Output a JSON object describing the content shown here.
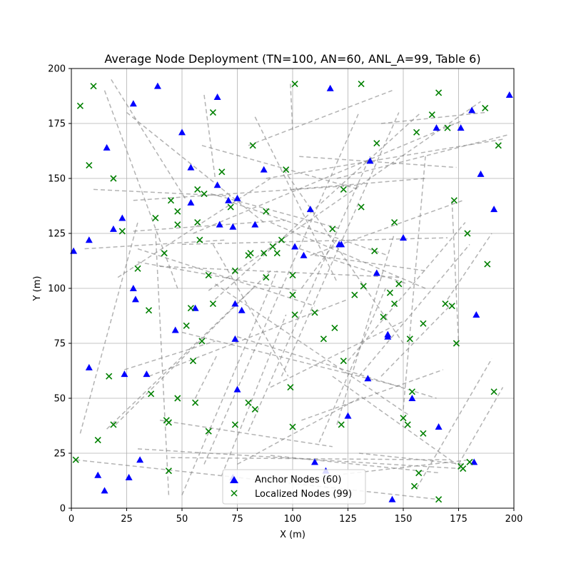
{
  "chart_data": {
    "type": "scatter",
    "title": "Average Node Deployment (TN=100, AN=60, ANL_A=99, Table 6)",
    "xlabel": "X (m)",
    "ylabel": "Y (m)",
    "xlim": [
      0,
      200
    ],
    "ylim": [
      0,
      200
    ],
    "xticks": [
      0,
      25,
      50,
      75,
      100,
      125,
      150,
      175,
      200
    ],
    "yticks": [
      0,
      25,
      50,
      75,
      100,
      125,
      150,
      175,
      200
    ],
    "grid": true,
    "legend_position": "lower-center",
    "colors": {
      "anchor": "#0000ff",
      "localized": "#008000",
      "link": "#808080"
    },
    "series": [
      {
        "name": "Anchor Nodes (60)",
        "marker": "triangle",
        "points": [
          [
            1,
            117
          ],
          [
            8,
            122
          ],
          [
            8,
            64
          ],
          [
            12,
            15
          ],
          [
            15,
            8
          ],
          [
            16,
            164
          ],
          [
            19,
            127
          ],
          [
            23,
            132
          ],
          [
            24,
            61
          ],
          [
            26,
            14
          ],
          [
            28,
            100
          ],
          [
            28,
            184
          ],
          [
            29,
            95
          ],
          [
            31,
            22
          ],
          [
            34,
            61
          ],
          [
            39,
            192
          ],
          [
            47,
            81
          ],
          [
            50,
            171
          ],
          [
            54,
            155
          ],
          [
            54,
            139
          ],
          [
            56,
            91
          ],
          [
            66,
            187
          ],
          [
            66,
            147
          ],
          [
            67,
            129
          ],
          [
            71,
            140
          ],
          [
            73,
            128
          ],
          [
            74,
            93
          ],
          [
            74,
            77
          ],
          [
            75,
            141
          ],
          [
            75,
            54
          ],
          [
            77,
            90
          ],
          [
            83,
            129
          ],
          [
            87,
            154
          ],
          [
            108,
            136
          ],
          [
            101,
            119
          ],
          [
            105,
            115
          ],
          [
            110,
            21
          ],
          [
            115,
            17
          ],
          [
            117,
            191
          ],
          [
            121,
            120
          ],
          [
            125,
            42
          ],
          [
            134,
            59
          ],
          [
            135,
            158
          ],
          [
            138,
            107
          ],
          [
            143,
            79
          ],
          [
            145,
            4
          ],
          [
            150,
            123
          ],
          [
            154,
            50
          ],
          [
            165,
            173
          ],
          [
            166,
            37
          ],
          [
            176,
            173
          ],
          [
            181,
            181
          ],
          [
            182,
            21
          ],
          [
            183,
            88
          ],
          [
            185,
            152
          ],
          [
            191,
            136
          ],
          [
            198,
            188
          ],
          [
            73,
            14
          ],
          [
            143,
            78
          ],
          [
            122,
            120
          ]
        ]
      },
      {
        "name": "Localized Nodes (99)",
        "marker": "x",
        "points": [
          [
            2,
            22
          ],
          [
            4,
            183
          ],
          [
            10,
            192
          ],
          [
            8,
            156
          ],
          [
            12,
            31
          ],
          [
            17,
            60
          ],
          [
            19,
            150
          ],
          [
            19,
            38
          ],
          [
            23,
            126
          ],
          [
            30,
            109
          ],
          [
            35,
            90
          ],
          [
            36,
            52
          ],
          [
            38,
            132
          ],
          [
            42,
            116
          ],
          [
            43,
            40
          ],
          [
            44,
            39
          ],
          [
            44,
            17
          ],
          [
            45,
            140
          ],
          [
            48,
            129
          ],
          [
            48,
            135
          ],
          [
            48,
            50
          ],
          [
            52,
            83
          ],
          [
            54,
            91
          ],
          [
            55,
            67
          ],
          [
            56,
            48
          ],
          [
            57,
            145
          ],
          [
            57,
            130
          ],
          [
            58,
            122
          ],
          [
            59,
            76
          ],
          [
            60,
            143
          ],
          [
            62,
            106
          ],
          [
            62,
            35
          ],
          [
            64,
            180
          ],
          [
            64,
            93
          ],
          [
            68,
            153
          ],
          [
            72,
            137
          ],
          [
            74,
            108
          ],
          [
            74,
            38
          ],
          [
            80,
            115
          ],
          [
            80,
            48
          ],
          [
            81,
            116
          ],
          [
            82,
            165
          ],
          [
            83,
            45
          ],
          [
            87,
            116
          ],
          [
            88,
            105
          ],
          [
            88,
            135
          ],
          [
            91,
            119
          ],
          [
            93,
            116
          ],
          [
            95,
            122
          ],
          [
            97,
            154
          ],
          [
            99,
            55
          ],
          [
            100,
            37
          ],
          [
            100,
            106
          ],
          [
            100,
            97
          ],
          [
            101,
            193
          ],
          [
            101,
            88
          ],
          [
            110,
            89
          ],
          [
            114,
            77
          ],
          [
            118,
            127
          ],
          [
            119,
            82
          ],
          [
            122,
            38
          ],
          [
            123,
            145
          ],
          [
            123,
            67
          ],
          [
            128,
            97
          ],
          [
            131,
            137
          ],
          [
            131,
            193
          ],
          [
            132,
            101
          ],
          [
            137,
            117
          ],
          [
            138,
            166
          ],
          [
            141,
            87
          ],
          [
            144,
            98
          ],
          [
            146,
            130
          ],
          [
            146,
            93
          ],
          [
            148,
            102
          ],
          [
            150,
            41
          ],
          [
            152,
            38
          ],
          [
            153,
            77
          ],
          [
            154,
            53
          ],
          [
            155,
            10
          ],
          [
            156,
            171
          ],
          [
            157,
            16
          ],
          [
            159,
            34
          ],
          [
            159,
            84
          ],
          [
            163,
            179
          ],
          [
            166,
            4
          ],
          [
            166,
            189
          ],
          [
            169,
            93
          ],
          [
            170,
            173
          ],
          [
            172,
            92
          ],
          [
            173,
            140
          ],
          [
            174,
            75
          ],
          [
            176,
            19
          ],
          [
            177,
            18
          ],
          [
            179,
            125
          ],
          [
            180,
            21
          ],
          [
            187,
            182
          ],
          [
            188,
            111
          ],
          [
            191,
            53
          ],
          [
            193,
            165
          ]
        ]
      }
    ],
    "links": [
      [
        4,
        34,
        30,
        130
      ],
      [
        6,
        118,
        70,
        122
      ],
      [
        10,
        145,
        72,
        142
      ],
      [
        15,
        190,
        48,
        100
      ],
      [
        18,
        195,
        52,
        140
      ],
      [
        21,
        105,
        90,
        150
      ],
      [
        25,
        180,
        87,
        130
      ],
      [
        28,
        126,
        97,
        131
      ],
      [
        30,
        112,
        102,
        99
      ],
      [
        24,
        63,
        65,
        76
      ],
      [
        16,
        36,
        82,
        100
      ],
      [
        20,
        38,
        90,
        108
      ],
      [
        2,
        22,
        166,
        4
      ],
      [
        30,
        27,
        176,
        18
      ],
      [
        45,
        23,
        170,
        22
      ],
      [
        65,
        102,
        153,
        42
      ],
      [
        35,
        60,
        125,
        95
      ],
      [
        40,
        40,
        118,
        28
      ],
      [
        44,
        6,
        38,
        126
      ],
      [
        56,
        50,
        66,
        70
      ],
      [
        64,
        120,
        98,
        60
      ],
      [
        83,
        178,
        120,
        103
      ],
      [
        59,
        165,
        130,
        145
      ],
      [
        63,
        143,
        122,
        127
      ],
      [
        99,
        193,
        100,
        172
      ],
      [
        96,
        154,
        150,
        75
      ],
      [
        90,
        130,
        160,
        100
      ],
      [
        60,
        188,
        65,
        150
      ],
      [
        65,
        95,
        158,
        180
      ],
      [
        70,
        140,
        143,
        115
      ],
      [
        80,
        165,
        145,
        190
      ],
      [
        88,
        150,
        196,
        168
      ],
      [
        103,
        160,
        174,
        155
      ],
      [
        104,
        100,
        120,
        122
      ],
      [
        108,
        115,
        177,
        140
      ],
      [
        112,
        30,
        142,
        100
      ],
      [
        120,
        38,
        146,
        125
      ],
      [
        125,
        67,
        178,
        130
      ],
      [
        130,
        60,
        180,
        120
      ],
      [
        95,
        60,
        148,
        180
      ],
      [
        80,
        35,
        135,
        160
      ],
      [
        60,
        20,
        130,
        180
      ],
      [
        150,
        45,
        160,
        160
      ],
      [
        170,
        95,
        190,
        125
      ],
      [
        140,
        60,
        172,
        93
      ],
      [
        156,
        9,
        190,
        68
      ],
      [
        172,
        140,
        175,
        75
      ],
      [
        175,
        20,
        195,
        55
      ],
      [
        110,
        115,
        160,
        108
      ],
      [
        97,
        120,
        152,
        102
      ],
      [
        75,
        78,
        165,
        50
      ],
      [
        50,
        80,
        150,
        55
      ],
      [
        40,
        110,
        148,
        105
      ],
      [
        30,
        118,
        110,
        92
      ],
      [
        50,
        120,
        170,
        123
      ],
      [
        55,
        125,
        176,
        176
      ],
      [
        28,
        140,
        130,
        147
      ],
      [
        62,
        99,
        185,
        185
      ],
      [
        120,
        150,
        198,
        170
      ],
      [
        140,
        175,
        187,
        180
      ],
      [
        100,
        145,
        160,
        150
      ],
      [
        104,
        40,
        168,
        63
      ],
      [
        90,
        55,
        150,
        85
      ],
      [
        75,
        20,
        130,
        50
      ],
      [
        68,
        15,
        97,
        88
      ],
      [
        50,
        6,
        93,
        108
      ],
      [
        90,
        24,
        167,
        16
      ],
      [
        110,
        14,
        180,
        22
      ],
      [
        130,
        25,
        177,
        20
      ],
      [
        118,
        60,
        174,
        20
      ]
    ]
  },
  "legend": {
    "anchor_label": "Anchor Nodes (60)",
    "localized_label": "Localized Nodes (99)"
  }
}
